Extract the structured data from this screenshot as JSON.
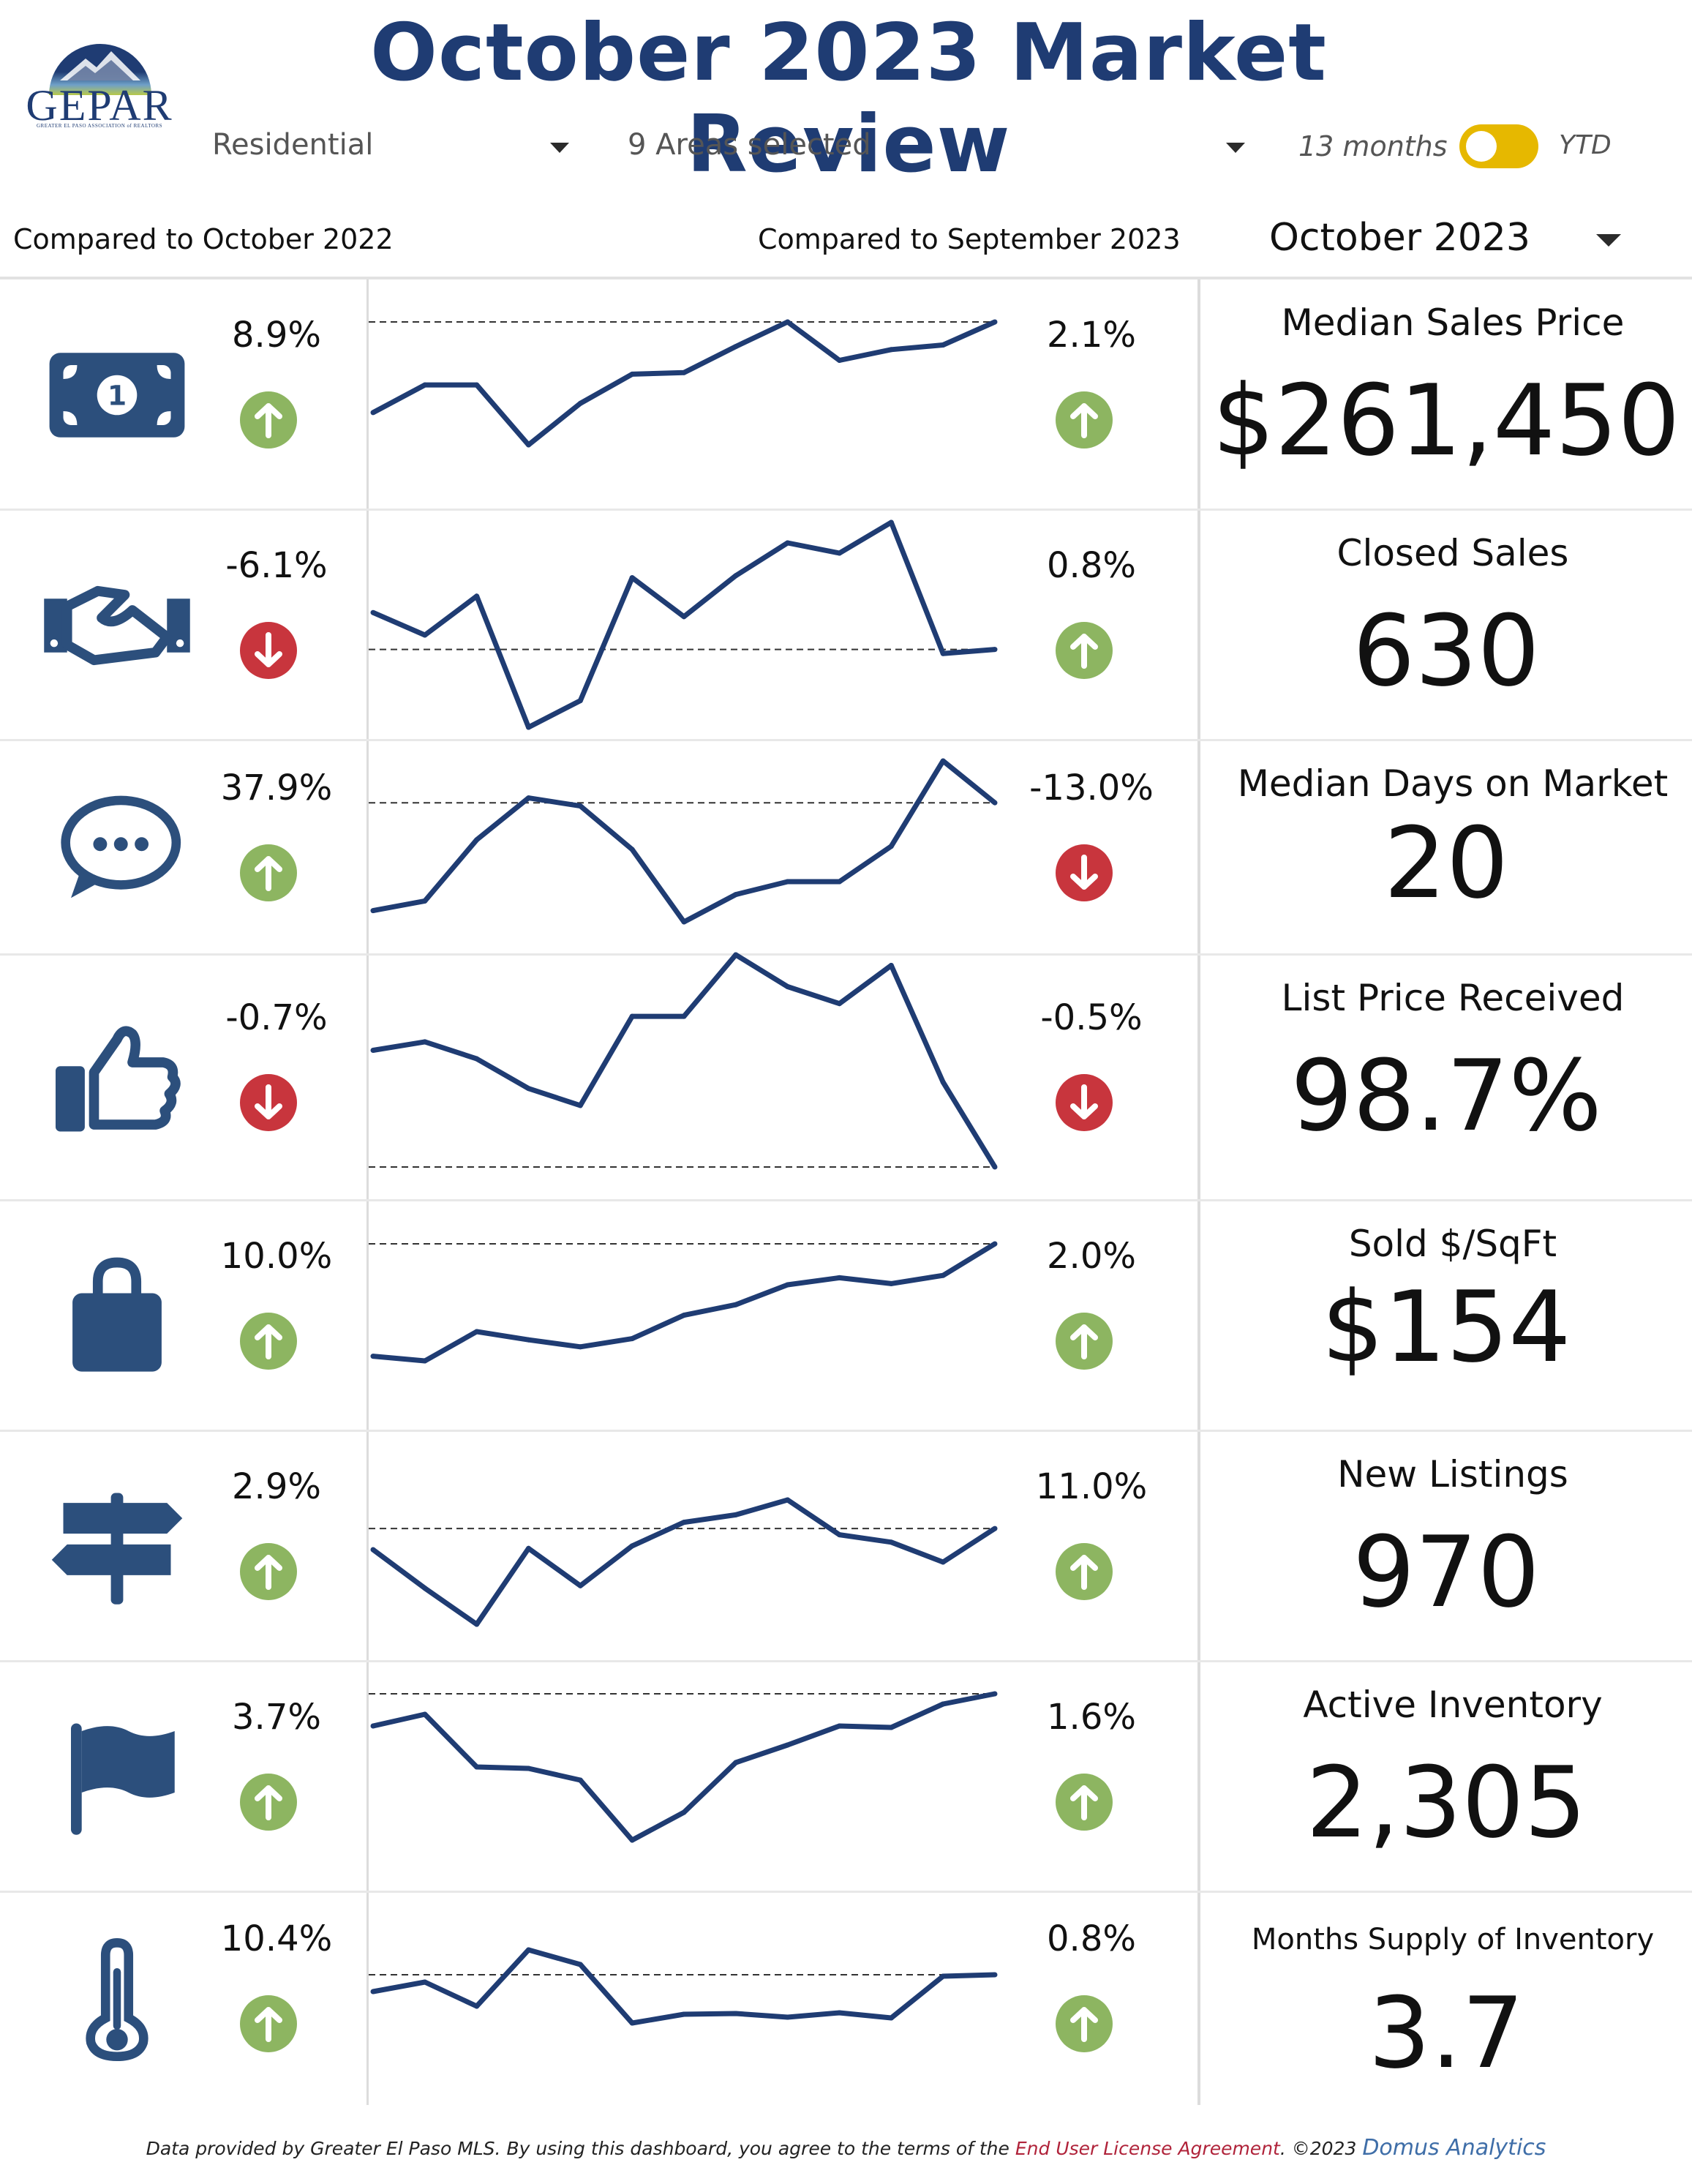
{
  "header": {
    "title": "October 2023 Market Review",
    "logo_text": "GEPAR",
    "logo_subtext": "GREATER EL PASO ASSOCIATION of REALTORS"
  },
  "filters": {
    "property_type": "Residential",
    "areas": "9 Areas selected",
    "toggle_left": "13 months",
    "toggle_right": "YTD",
    "period": "October 2023"
  },
  "compare": {
    "year_label": "Compared to October 2022",
    "month_label": "Compared to September 2023"
  },
  "colors": {
    "brand_navy": "#1f3c73",
    "up_green": "#8db561",
    "down_red": "#c8353d",
    "toggle_yellow": "#e6b800",
    "icon_blue": "#2c4f7c"
  },
  "metrics": [
    {
      "icon": "money-bill-icon",
      "label": "Median Sales Price",
      "value": "$261,450",
      "yoy": "8.9%",
      "yoy_dir": "up",
      "mom": "2.1%",
      "mom_dir": "up",
      "ref": "max",
      "trend": [
        0.41,
        0.59,
        0.59,
        0.2,
        0.47,
        0.66,
        0.67,
        0.84,
        1.0,
        0.75,
        0.82,
        0.85,
        1.0
      ]
    },
    {
      "icon": "handshake-icon",
      "label": "Closed Sales",
      "value": "630",
      "yoy": "-6.1%",
      "yoy_dir": "down",
      "mom": "0.8%",
      "mom_dir": "up",
      "ref": "last",
      "trend": [
        0.56,
        0.45,
        0.64,
        0.0,
        0.13,
        0.73,
        0.54,
        0.74,
        0.9,
        0.85,
        1.0,
        0.36,
        0.38
      ]
    },
    {
      "icon": "speech-bubble-icon",
      "label": "Median Days on Market",
      "value": "20",
      "yoy": "37.9%",
      "yoy_dir": "up",
      "mom": "-13.0%",
      "mom_dir": "down",
      "ref": "last",
      "trend": [
        0.07,
        0.13,
        0.51,
        0.77,
        0.72,
        0.45,
        0.0,
        0.17,
        0.25,
        0.25,
        0.47,
        1.0,
        0.74
      ]
    },
    {
      "icon": "thumbs-up-icon",
      "label": "List Price Received",
      "value": "98.7%",
      "yoy": "-0.7%",
      "yoy_dir": "down",
      "mom": "-0.5%",
      "mom_dir": "down",
      "ref": "last",
      "trend": [
        0.55,
        0.59,
        0.51,
        0.37,
        0.29,
        0.71,
        0.71,
        1.0,
        0.85,
        0.77,
        0.95,
        0.4,
        0.0
      ]
    },
    {
      "icon": "shopping-bag-icon",
      "label": "Sold $/SqFt",
      "value": "$154",
      "yoy": "10.0%",
      "yoy_dir": "up",
      "mom": "2.0%",
      "mom_dir": "up",
      "ref": "max",
      "trend": [
        0.04,
        0.0,
        0.25,
        0.18,
        0.12,
        0.19,
        0.39,
        0.48,
        0.65,
        0.71,
        0.66,
        0.73,
        1.0
      ]
    },
    {
      "icon": "signpost-icon",
      "label": "New Listings",
      "value": "970",
      "yoy": "2.9%",
      "yoy_dir": "up",
      "mom": "11.0%",
      "mom_dir": "up",
      "ref": "last",
      "trend": [
        0.6,
        0.29,
        0.0,
        0.61,
        0.31,
        0.63,
        0.82,
        0.88,
        1.0,
        0.72,
        0.66,
        0.5,
        0.77
      ]
    },
    {
      "icon": "flag-icon",
      "label": "Active Inventory",
      "value": "2,305",
      "yoy": "3.7%",
      "yoy_dir": "up",
      "mom": "1.6%",
      "mom_dir": "up",
      "ref": "max",
      "trend": [
        0.78,
        0.86,
        0.5,
        0.49,
        0.41,
        0.0,
        0.19,
        0.53,
        0.65,
        0.78,
        0.77,
        0.93,
        1.0
      ]
    },
    {
      "icon": "thermometer-icon",
      "label": "Months Supply of Inventory",
      "value": "3.7",
      "yoy": "10.4%",
      "yoy_dir": "up",
      "mom": "0.8%",
      "mom_dir": "up",
      "ref": "last",
      "trend": [
        0.43,
        0.56,
        0.23,
        1.0,
        0.8,
        0.0,
        0.12,
        0.13,
        0.08,
        0.14,
        0.07,
        0.64,
        0.66
      ]
    }
  ],
  "footer": {
    "text_a": "Data provided by Greater El Paso MLS.  By using this dashboard, you agree to the terms of the ",
    "eula": "End User License Agreement",
    "text_b": ".  ©2023 ",
    "brand": "Domus Analytics"
  }
}
